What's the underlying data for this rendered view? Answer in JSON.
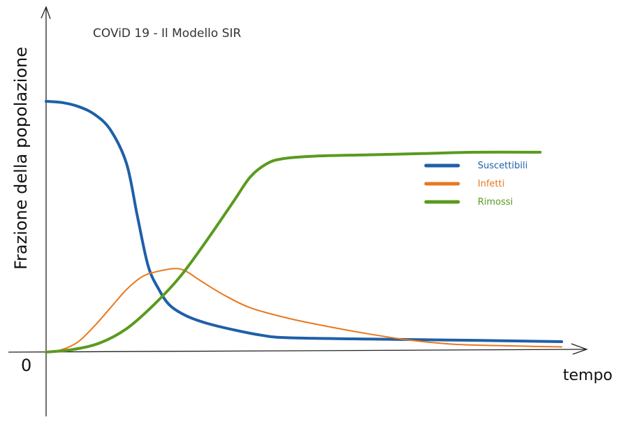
{
  "chart_data": {
    "type": "line",
    "title": "COViD 19 - Il Modello SIR",
    "xlabel": "tempo",
    "ylabel": "Frazione della popolazione",
    "origin_label": "0",
    "grid": false,
    "legend_position": "right",
    "xlim": [
      0,
      100
    ],
    "ylim": [
      0,
      1
    ],
    "series": [
      {
        "name": "Suscettibili",
        "color": "#1f5fa8",
        "points": [
          [
            0,
            0.96
          ],
          [
            3,
            0.955
          ],
          [
            6,
            0.94
          ],
          [
            9,
            0.91
          ],
          [
            12,
            0.85
          ],
          [
            15,
            0.72
          ],
          [
            17,
            0.52
          ],
          [
            19,
            0.33
          ],
          [
            21,
            0.24
          ],
          [
            23,
            0.18
          ],
          [
            26,
            0.14
          ],
          [
            30,
            0.11
          ],
          [
            35,
            0.085
          ],
          [
            40,
            0.065
          ],
          [
            45,
            0.055
          ],
          [
            60,
            0.05
          ],
          [
            80,
            0.045
          ],
          [
            96,
            0.04
          ]
        ]
      },
      {
        "name": "Infetti",
        "color": "#e8781e",
        "points": [
          [
            0,
            0.0
          ],
          [
            3,
            0.01
          ],
          [
            6,
            0.04
          ],
          [
            9,
            0.1
          ],
          [
            12,
            0.17
          ],
          [
            15,
            0.24
          ],
          [
            18,
            0.29
          ],
          [
            21,
            0.31
          ],
          [
            24,
            0.32
          ],
          [
            26,
            0.31
          ],
          [
            29,
            0.27
          ],
          [
            33,
            0.22
          ],
          [
            38,
            0.17
          ],
          [
            45,
            0.13
          ],
          [
            52,
            0.1
          ],
          [
            60,
            0.07
          ],
          [
            68,
            0.045
          ],
          [
            76,
            0.03
          ],
          [
            84,
            0.025
          ],
          [
            96,
            0.02
          ]
        ]
      },
      {
        "name": "Rimossi",
        "color": "#5a9a1e",
        "points": [
          [
            0,
            0.0
          ],
          [
            5,
            0.01
          ],
          [
            10,
            0.035
          ],
          [
            15,
            0.09
          ],
          [
            20,
            0.18
          ],
          [
            25,
            0.29
          ],
          [
            30,
            0.43
          ],
          [
            35,
            0.58
          ],
          [
            38,
            0.67
          ],
          [
            41,
            0.72
          ],
          [
            44,
            0.74
          ],
          [
            50,
            0.75
          ],
          [
            60,
            0.755
          ],
          [
            70,
            0.76
          ],
          [
            80,
            0.765
          ],
          [
            92,
            0.765
          ]
        ]
      }
    ]
  }
}
